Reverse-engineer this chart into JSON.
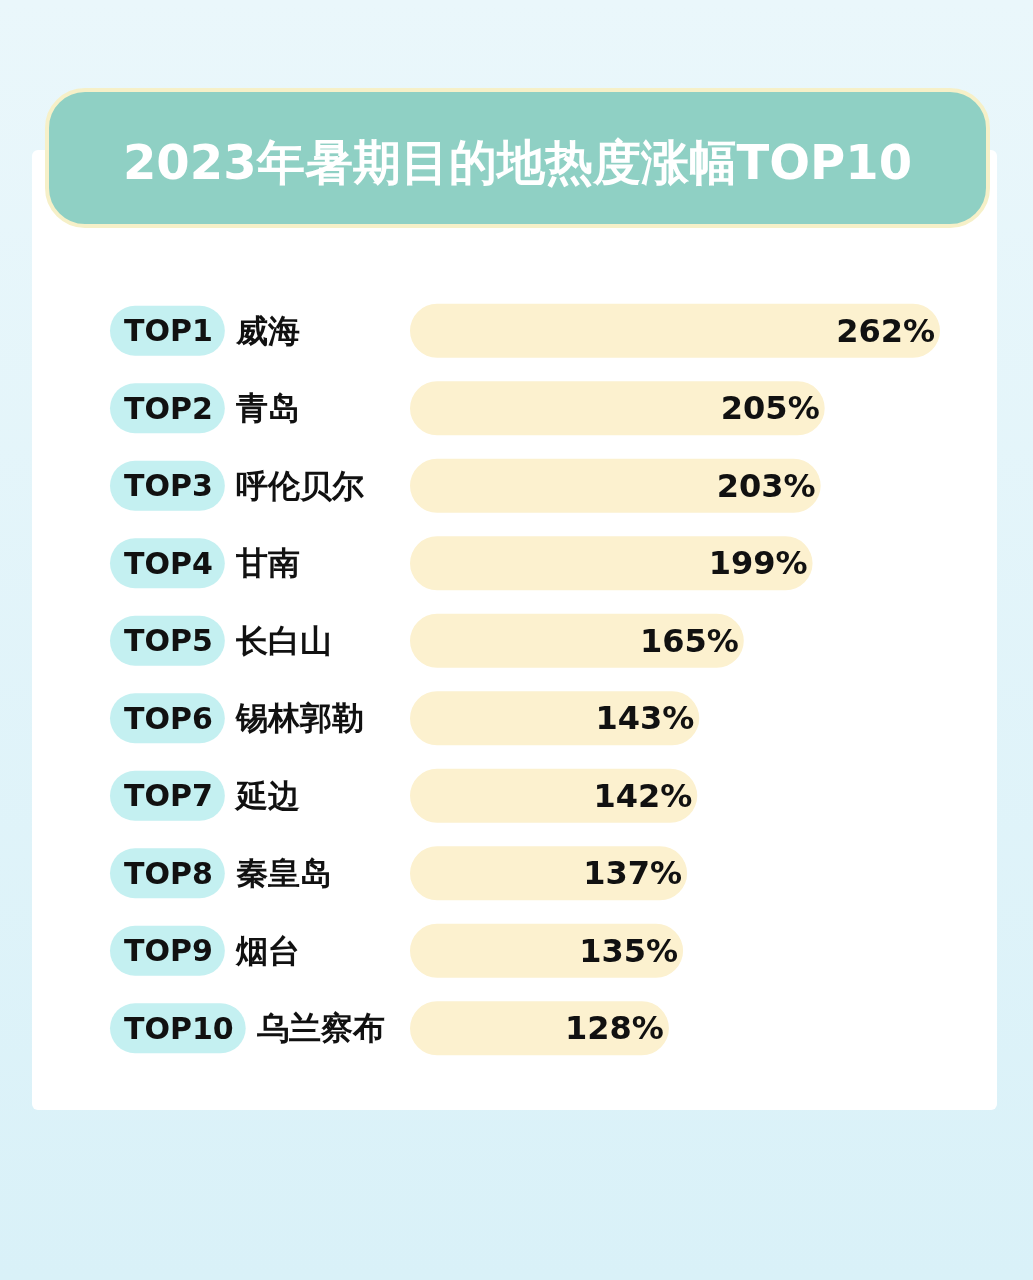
{
  "chart_data": {
    "type": "bar",
    "orientation": "horizontal",
    "title": "2023年暑期目的地热度涨幅TOP10",
    "categories": [
      "TOP1 威海",
      "TOP2 青岛",
      "TOP3 呼伦贝尔",
      "TOP4 甘南",
      "TOP5 长白山",
      "TOP6 锡林郭勒",
      "TOP7 延边",
      "TOP8 秦皇岛",
      "TOP9 烟台",
      "TOP10 乌兰察布"
    ],
    "values": [
      262,
      205,
      203,
      199,
      165,
      143,
      142,
      137,
      135,
      128
    ],
    "value_labels": [
      "262%",
      "205%",
      "203%",
      "199%",
      "165%",
      "143%",
      "142%",
      "137%",
      "135%",
      "128%"
    ],
    "color": "#fcf1cf"
  }
}
